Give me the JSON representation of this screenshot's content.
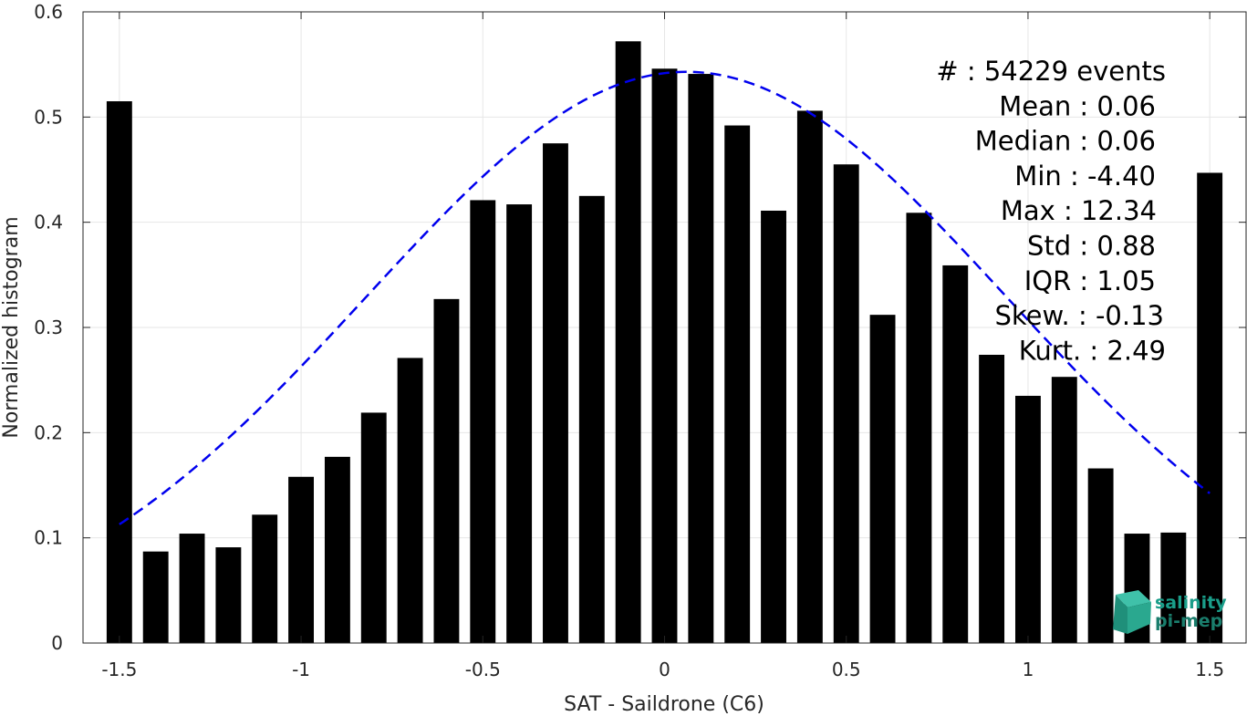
{
  "chart_data": {
    "type": "bar",
    "title": "",
    "xlabel": "SAT - Saildrone (C6)",
    "ylabel": "Normalized histogram",
    "xlim": [
      -1.6,
      1.6
    ],
    "ylim": [
      0,
      0.6
    ],
    "grid": true,
    "x_ticks": [
      -1.5,
      -1,
      -0.5,
      0,
      0.5,
      1,
      1.5
    ],
    "x_tick_labels": [
      "-1.5",
      "-1",
      "-0.5",
      "0",
      "0.5",
      "1",
      "1.5"
    ],
    "y_ticks": [
      0,
      0.1,
      0.2,
      0.3,
      0.4,
      0.5,
      0.6
    ],
    "y_tick_labels": [
      "0",
      "0.1",
      "0.2",
      "0.3",
      "0.4",
      "0.5",
      "0.6"
    ],
    "bar_color": "#000000",
    "bin_width": 0.1,
    "bars": {
      "x": [
        -1.5,
        -1.4,
        -1.3,
        -1.2,
        -1.1,
        -1.0,
        -0.9,
        -0.8,
        -0.7,
        -0.6,
        -0.5,
        -0.4,
        -0.3,
        -0.2,
        -0.1,
        0.0,
        0.1,
        0.2,
        0.3,
        0.4,
        0.5,
        0.6,
        0.7,
        0.8,
        0.9,
        1.0,
        1.1,
        1.2,
        1.3,
        1.4,
        1.5
      ],
      "values": [
        0.515,
        0.087,
        0.104,
        0.091,
        0.122,
        0.158,
        0.177,
        0.219,
        0.271,
        0.327,
        0.421,
        0.417,
        0.475,
        0.425,
        0.572,
        0.546,
        0.541,
        0.492,
        0.411,
        0.506,
        0.455,
        0.312,
        0.409,
        0.359,
        0.274,
        0.235,
        0.253,
        0.166,
        0.104,
        0.105,
        0.447
      ]
    },
    "fit": {
      "type": "gaussian",
      "color": "#0000ee",
      "style": "dashed",
      "mean": 0.06,
      "std": 0.88,
      "peak": 0.543,
      "x_range": [
        -1.5,
        1.5
      ]
    },
    "annotations": [
      "#  : 54229 events",
      "Mean : 0.06",
      "Median : 0.06",
      "Min : -4.40",
      "Max : 12.34",
      "Std : 0.88",
      "IQR : 1.05",
      "Skew. : -0.13",
      "Kurt. : 2.49"
    ]
  },
  "logo": {
    "line1": "salinity",
    "line2": "pi-mep",
    "color": "#1a9e8a"
  }
}
